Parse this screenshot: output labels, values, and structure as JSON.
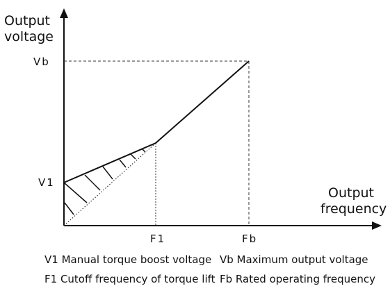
{
  "axes": {
    "y_title_line1": "Output",
    "y_title_line2": "voltage",
    "x_title_line1": "Output",
    "x_title_line2": "frequency"
  },
  "ticks": {
    "vb": "Vb",
    "v1": "V1",
    "f1": "F1",
    "fb": "Fb"
  },
  "legend": {
    "v1_desc": "V1 Manual torque boost voltage",
    "vb_desc": "Vb Maximum output voltage",
    "f1_desc": "F1 Cutoff frequency of torque lift",
    "fb_desc": "Fb Rated operating frequency"
  }
}
